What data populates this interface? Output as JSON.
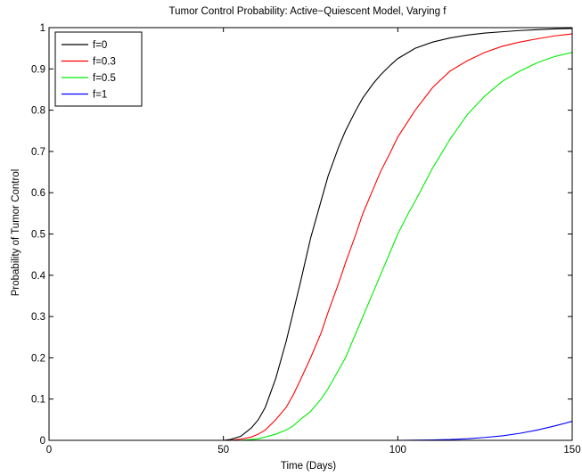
{
  "chart_data": {
    "type": "line",
    "title": "Tumor Control Probability: Active−Quiescent Model, Varying f",
    "xlabel": "Time (Days)",
    "ylabel": "Probability of Tumor Control",
    "xlim": [
      0,
      150
    ],
    "ylim": [
      0,
      1
    ],
    "xticks": [
      0,
      50,
      100,
      150
    ],
    "xtick_labels": [
      "0",
      "50",
      "100",
      "150"
    ],
    "yticks": [
      0,
      0.1,
      0.2,
      0.3,
      0.4,
      0.5,
      0.6,
      0.7,
      0.8,
      0.9,
      1
    ],
    "ytick_labels": [
      "0",
      "0.1",
      "0.2",
      "0.3",
      "0.4",
      "0.5",
      "0.6",
      "0.7",
      "0.8",
      "0.9",
      "1"
    ],
    "grid": false,
    "legend_position": "top-left",
    "series": [
      {
        "name": "f=0",
        "color": "#000000",
        "x": [
          0,
          50,
          52,
          55,
          58,
          60,
          62,
          65,
          68,
          70,
          72,
          75,
          78,
          80,
          83,
          85,
          88,
          90,
          93,
          95,
          98,
          100,
          105,
          110,
          115,
          120,
          125,
          130,
          135,
          140,
          145,
          150
        ],
        "y": [
          0,
          0,
          0.002,
          0.01,
          0.03,
          0.05,
          0.08,
          0.15,
          0.24,
          0.31,
          0.38,
          0.49,
          0.58,
          0.64,
          0.71,
          0.75,
          0.8,
          0.83,
          0.865,
          0.885,
          0.91,
          0.925,
          0.95,
          0.965,
          0.975,
          0.982,
          0.987,
          0.99,
          0.993,
          0.995,
          0.997,
          0.998
        ]
      },
      {
        "name": "f=0.3",
        "color": "#ff0000",
        "x": [
          0,
          52,
          55,
          58,
          60,
          62,
          65,
          68,
          70,
          72,
          75,
          78,
          80,
          83,
          85,
          88,
          90,
          93,
          95,
          98,
          100,
          105,
          110,
          115,
          120,
          125,
          130,
          135,
          140,
          145,
          150
        ],
        "y": [
          0,
          0,
          0.003,
          0.008,
          0.015,
          0.025,
          0.05,
          0.08,
          0.11,
          0.145,
          0.2,
          0.26,
          0.31,
          0.38,
          0.43,
          0.5,
          0.55,
          0.61,
          0.65,
          0.7,
          0.735,
          0.8,
          0.855,
          0.895,
          0.92,
          0.94,
          0.955,
          0.965,
          0.973,
          0.98,
          0.985
        ]
      },
      {
        "name": "f=0.5",
        "color": "#00ee00",
        "x": [
          0,
          55,
          58,
          60,
          62,
          65,
          68,
          70,
          72,
          75,
          78,
          80,
          83,
          85,
          88,
          90,
          93,
          95,
          98,
          100,
          103,
          105,
          110,
          115,
          120,
          125,
          130,
          135,
          140,
          145,
          150
        ],
        "y": [
          0,
          0,
          0.002,
          0.004,
          0.008,
          0.015,
          0.025,
          0.035,
          0.05,
          0.07,
          0.1,
          0.125,
          0.17,
          0.2,
          0.26,
          0.3,
          0.36,
          0.4,
          0.46,
          0.5,
          0.55,
          0.58,
          0.66,
          0.73,
          0.79,
          0.835,
          0.87,
          0.895,
          0.915,
          0.93,
          0.94
        ]
      },
      {
        "name": "f=1",
        "color": "#0000ff",
        "x": [
          0,
          100,
          105,
          110,
          115,
          120,
          125,
          130,
          135,
          140,
          145,
          150
        ],
        "y": [
          0,
          0,
          0.0003,
          0.001,
          0.002,
          0.004,
          0.007,
          0.011,
          0.017,
          0.025,
          0.035,
          0.046
        ]
      }
    ]
  }
}
